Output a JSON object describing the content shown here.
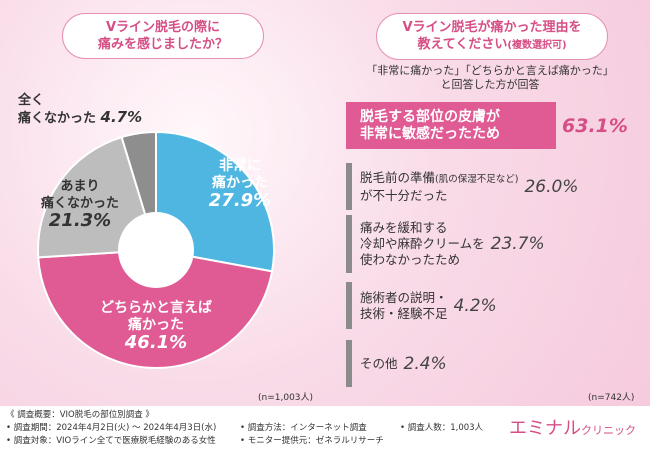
{
  "left": {
    "question": [
      "Vライン脱毛の際に",
      "痛みを感じましたか？"
    ],
    "n_note": "(n=1,003人)"
  },
  "right": {
    "question_line1": "Vライン脱毛が痛かった理由を",
    "question_line2": "教えてください",
    "question_suffix": "(複数選択可)",
    "subheader_line1": "「非常に痛かった」「どちらかと言えば痛かった」",
    "subheader_line2": "と回答した方が回答",
    "n_note": "(n=742人)"
  },
  "chart_data": [
    {
      "type": "pie",
      "categories": [
        "非常に痛かった",
        "どちらかと言えば痛かった",
        "あまり痛くなかった",
        "全く痛くなかった"
      ],
      "values": [
        27.9,
        46.1,
        21.3,
        4.7
      ],
      "value_labels": [
        "27.9%",
        "46.1%",
        "21.3%",
        "4.7%"
      ],
      "label_lines": [
        [
          "非常に",
          "痛かった"
        ],
        [
          "どちらかと言えば",
          "痛かった"
        ],
        [
          "あまり",
          "痛くなかった"
        ],
        [
          "全く",
          "痛くなかった"
        ]
      ],
      "colors": [
        "#4fb6e2",
        "#e05a94",
        "#bdbdbd",
        "#8e8e8e"
      ],
      "donut": true
    },
    {
      "type": "bar",
      "orientation": "horizontal",
      "categories": [
        "脱毛する部位の皮膚が非常に敏感だったため",
        "脱毛前の準備(肌の保湿不足など)が不十分だった",
        "痛みを緩和する冷却や麻酔クリームを使わなかったため",
        "施術者の説明・技術・経験不足",
        "その他"
      ],
      "label_lines": [
        [
          "脱毛する部位の皮膚が",
          "非常に敏感だったため"
        ],
        [
          "脱毛前の準備",
          "が不十分だった"
        ],
        [
          "痛みを緩和する",
          "冷却や麻酔クリームを",
          "使わなかったため"
        ],
        [
          "施術者の説明・",
          "技術・経験不足"
        ],
        [
          "その他"
        ]
      ],
      "label_small": "(肌の保湿不足など)",
      "values": [
        63.1,
        26.0,
        23.7,
        4.2,
        2.4
      ],
      "value_labels": [
        "63.1%",
        "26.0%",
        "23.7%",
        "4.2%",
        "2.4%"
      ],
      "highlight_color": "#e05a94",
      "base_color": "#8b8b8b"
    }
  ],
  "footer": {
    "overview": "《 調査概要：VIO脱毛の部位別調査 》",
    "period": "• 調査期間：2024年4月2日(火) 〜 2024年4月3日(水)",
    "target": "• 調査対象：VIOライン全てで医療脱毛経験のある女性",
    "method": "• 調査方法：インターネット調査",
    "provider": "• モニター提供元：ゼネラルリサーチ",
    "count": "• 調査人数：1,003人",
    "logo_main": "エミナル",
    "logo_sub": "クリニック"
  }
}
